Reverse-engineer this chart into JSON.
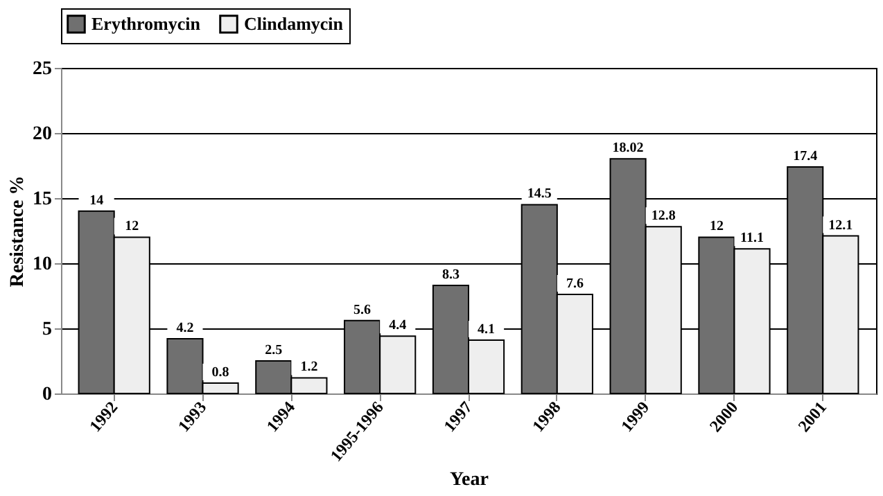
{
  "chart_data": {
    "type": "bar",
    "xlabel": "Year",
    "ylabel": "Resistance %",
    "categories": [
      "1992",
      "1993",
      "1994",
      "1995-1996",
      "1997",
      "1998",
      "1999",
      "2000",
      "2001"
    ],
    "series": [
      {
        "name": "Erythromycin",
        "color": "#707070",
        "values": [
          14,
          4.2,
          2.5,
          5.6,
          8.3,
          14.5,
          18.02,
          12,
          17.4
        ]
      },
      {
        "name": "Clindamycin",
        "color": "#eeeeee",
        "values": [
          12,
          0.8,
          1.2,
          4.4,
          4.1,
          7.6,
          12.8,
          11.1,
          12.1
        ]
      }
    ],
    "ylim": [
      0,
      25
    ],
    "yticks": [
      0,
      5,
      10,
      15,
      20,
      25
    ],
    "grid": "y",
    "legend": "top",
    "data_labels": true
  }
}
